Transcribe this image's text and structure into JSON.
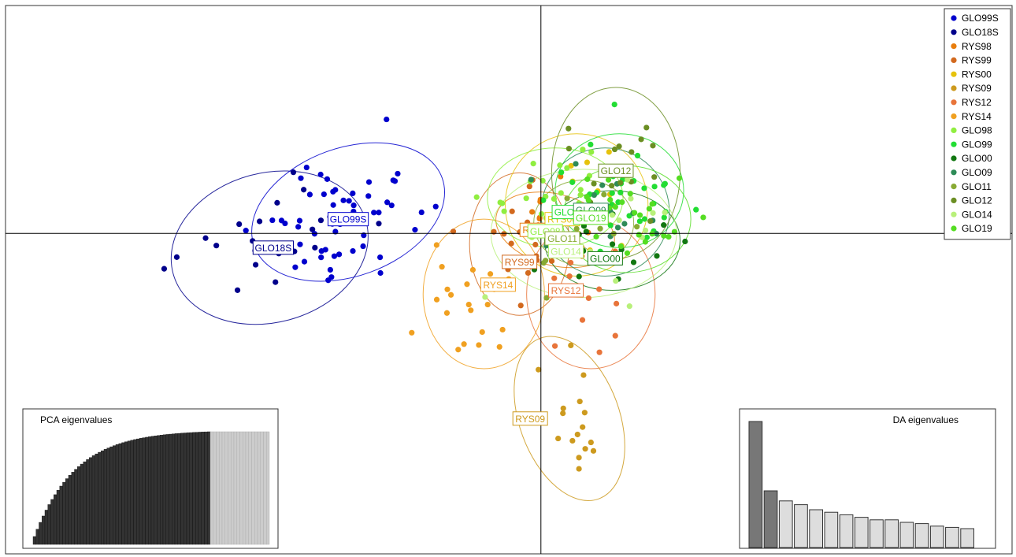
{
  "chart_data": {
    "type": "scatter",
    "title": "",
    "xlabel": "",
    "ylabel": "",
    "xlim": [
      -7.5,
      6.6
    ],
    "ylim": [
      -4.5,
      3.2
    ],
    "grid": false,
    "axes_cross_at_origin": true,
    "legend_placement": "top-right",
    "legend": [
      {
        "name": "GLO99S",
        "color": "#0000cd"
      },
      {
        "name": "GLO18S",
        "color": "#00008b"
      },
      {
        "name": "RYS98",
        "color": "#e87d0d"
      },
      {
        "name": "RYS99",
        "color": "#d2691e"
      },
      {
        "name": "RYS00",
        "color": "#e6c20c"
      },
      {
        "name": "RYS09",
        "color": "#cd9a1e"
      },
      {
        "name": "RYS12",
        "color": "#e8743a"
      },
      {
        "name": "RYS14",
        "color": "#f0a020"
      },
      {
        "name": "GLO98",
        "color": "#90ee40"
      },
      {
        "name": "GLO99",
        "color": "#22dd33"
      },
      {
        "name": "GLO00",
        "color": "#117711"
      },
      {
        "name": "GLO09",
        "color": "#2e8b57"
      },
      {
        "name": "GLO11",
        "color": "#88aa33"
      },
      {
        "name": "GLO12",
        "color": "#6b8e23"
      },
      {
        "name": "GLO14",
        "color": "#b8f07a"
      },
      {
        "name": "GLO19",
        "color": "#55dd22"
      }
    ],
    "groups": [
      {
        "name": "GLO18S",
        "color": "#00008b",
        "center": [
          -3.8,
          -0.2
        ],
        "radii": [
          1.4,
          1.05
        ],
        "angle": 15,
        "label": "GLO18S",
        "label_at": [
          -3.75,
          -0.2
        ],
        "n": 22,
        "spread": [
          0.9,
          0.6
        ]
      },
      {
        "name": "GLO99S",
        "color": "#0000cd",
        "center": [
          -2.7,
          0.3
        ],
        "radii": [
          1.4,
          0.9
        ],
        "angle": 20,
        "label": "GLO99S",
        "label_at": [
          -2.7,
          0.2
        ],
        "n": 55,
        "spread": [
          0.85,
          0.55
        ]
      },
      {
        "name": "RYS98",
        "color": "#e87d0d",
        "center": [
          0.2,
          0.05
        ],
        "radii": [
          0.85,
          0.5
        ],
        "angle": -15,
        "label": "RYS98",
        "label_at": [
          -0.05,
          0.05
        ],
        "n": 12,
        "spread": [
          0.5,
          0.35
        ]
      },
      {
        "name": "RYS99",
        "color": "#d2691e",
        "center": [
          -0.3,
          -0.15
        ],
        "radii": [
          0.7,
          1.0
        ],
        "angle": 0,
        "label": "RYS99",
        "label_at": [
          -0.3,
          -0.4
        ],
        "n": 18,
        "spread": [
          0.45,
          0.6
        ]
      },
      {
        "name": "RYS00",
        "color": "#e6c20c",
        "center": [
          0.5,
          0.4
        ],
        "radii": [
          1.0,
          1.0
        ],
        "angle": 0,
        "label": "RYS00",
        "label_at": [
          0.3,
          0.2
        ],
        "n": 14,
        "spread": [
          0.55,
          0.55
        ]
      },
      {
        "name": "RYS09",
        "color": "#cd9a1e",
        "center": [
          0.4,
          -2.6
        ],
        "radii": [
          0.7,
          1.2
        ],
        "angle": 20,
        "label": "RYS09",
        "label_at": [
          -0.15,
          -2.6
        ],
        "n": 16,
        "spread": [
          0.4,
          0.7
        ]
      },
      {
        "name": "RYS12",
        "color": "#e8743a",
        "center": [
          0.7,
          -0.85
        ],
        "radii": [
          0.9,
          1.05
        ],
        "angle": 0,
        "label": "RYS12",
        "label_at": [
          0.35,
          -0.8
        ],
        "n": 16,
        "spread": [
          0.55,
          0.6
        ]
      },
      {
        "name": "RYS14",
        "color": "#f0a020",
        "center": [
          -0.8,
          -0.85
        ],
        "radii": [
          0.85,
          1.05
        ],
        "angle": 0,
        "label": "RYS14",
        "label_at": [
          -0.6,
          -0.72
        ],
        "n": 22,
        "spread": [
          0.6,
          0.6
        ]
      },
      {
        "name": "GLO98",
        "color": "#90ee40",
        "center": [
          0.2,
          0.5
        ],
        "radii": [
          0.95,
          0.7
        ],
        "angle": 0,
        "label": "GLO98",
        "label_at": [
          0.06,
          0.03
        ],
        "n": 25,
        "spread": [
          0.6,
          0.45
        ]
      },
      {
        "name": "GLO99",
        "color": "#22dd33",
        "center": [
          1.1,
          0.6
        ],
        "radii": [
          0.9,
          0.8
        ],
        "angle": 0,
        "label": "GLO99",
        "label_at": [
          0.4,
          0.3
        ],
        "n": 35,
        "spread": [
          0.6,
          0.5
        ]
      },
      {
        "name": "GLO00",
        "color": "#117711",
        "center": [
          1.0,
          -0.1
        ],
        "radii": [
          0.95,
          0.7
        ],
        "angle": 0,
        "label": "GLO00",
        "label_at": [
          0.9,
          -0.35
        ],
        "n": 22,
        "spread": [
          0.6,
          0.45
        ]
      },
      {
        "name": "GLO09",
        "color": "#2e8b57",
        "center": [
          0.9,
          0.3
        ],
        "radii": [
          0.9,
          0.9
        ],
        "angle": 0,
        "label": "GLO09",
        "label_at": [
          0.7,
          0.33
        ],
        "n": 18,
        "spread": [
          0.55,
          0.55
        ]
      },
      {
        "name": "GLO11",
        "color": "#88aa33",
        "center": [
          0.6,
          0.15
        ],
        "radii": [
          0.7,
          0.6
        ],
        "angle": 0,
        "label": "GLO11",
        "label_at": [
          0.3,
          -0.07
        ],
        "n": 15,
        "spread": [
          0.45,
          0.4
        ]
      },
      {
        "name": "GLO12",
        "color": "#6b8e23",
        "center": [
          1.05,
          0.85
        ],
        "radii": [
          0.9,
          1.2
        ],
        "angle": 0,
        "label": "GLO12",
        "label_at": [
          1.05,
          0.88
        ],
        "n": 18,
        "spread": [
          0.55,
          0.75
        ]
      },
      {
        "name": "GLO14",
        "color": "#b8f07a",
        "center": [
          0.6,
          0.0
        ],
        "radii": [
          1.3,
          0.9
        ],
        "angle": 0,
        "label": "GLO14",
        "label_at": [
          0.35,
          -0.25
        ],
        "n": 20,
        "spread": [
          0.8,
          0.55
        ]
      },
      {
        "name": "GLO19",
        "color": "#55dd22",
        "center": [
          1.2,
          0.2
        ],
        "radii": [
          0.9,
          0.75
        ],
        "angle": 0,
        "label": "GLO19",
        "label_at": [
          0.7,
          0.22
        ],
        "n": 25,
        "spread": [
          0.6,
          0.45
        ]
      }
    ],
    "insets": [
      {
        "title": "PCA eigenvalues",
        "type": "bar",
        "retained": 60,
        "total": 80,
        "shape": "cumulative",
        "color_retained": "#333333",
        "color_discarded": "#cccccc"
      },
      {
        "title": "DA eigenvalues",
        "type": "bar",
        "values": [
          1.0,
          0.45,
          0.37,
          0.34,
          0.3,
          0.28,
          0.26,
          0.24,
          0.22,
          0.22,
          0.2,
          0.19,
          0.17,
          0.16,
          0.15
        ],
        "retained": 2,
        "color_retained": "#777777",
        "color_discarded": "#dddddd"
      }
    ]
  }
}
